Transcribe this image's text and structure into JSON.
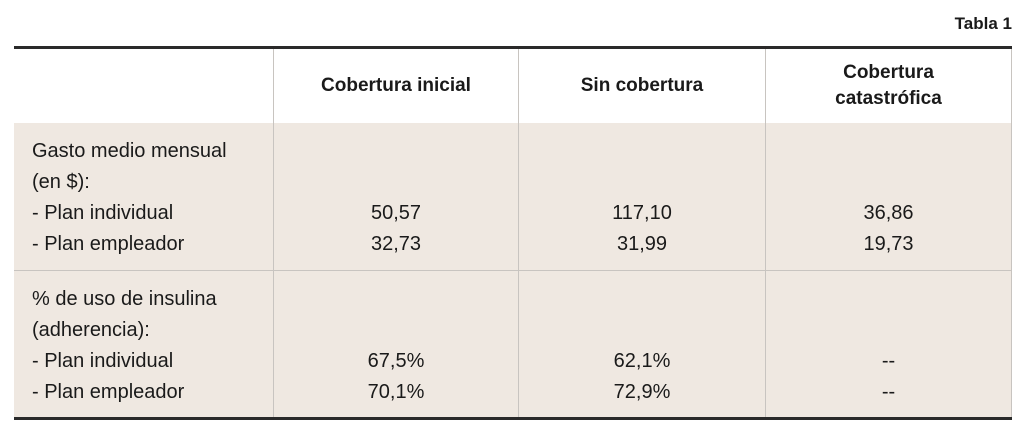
{
  "caption": "Tabla 1",
  "columns": [
    "",
    "Cobertura inicial",
    "Sin cobertura",
    "Cobertura catastrófica"
  ],
  "column_lines": {
    "catastrofica": [
      "Cobertura",
      "catastrófica"
    ]
  },
  "rows": [
    {
      "label_lines": [
        "Gasto medio mensual",
        "(en $):",
        "- Plan individual",
        "- Plan empleador"
      ],
      "values": [
        [
          "50,57",
          "32,73"
        ],
        [
          "117,10",
          "31,99"
        ],
        [
          "36,86",
          "19,73"
        ]
      ]
    },
    {
      "label_lines": [
        "% de uso de insulina",
        "(adherencia):",
        "- Plan individual",
        "- Plan empleador"
      ],
      "values": [
        [
          "67,5%",
          "70,1%"
        ],
        [
          "62,1%",
          "72,9%"
        ],
        [
          "--",
          "--"
        ]
      ]
    }
  ],
  "colors": {
    "row_fill": "#efe8e1",
    "rule": "#2a2a2a"
  }
}
